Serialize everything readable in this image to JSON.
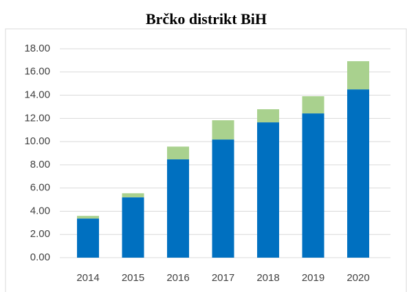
{
  "chart_data": {
    "type": "stacked_bar",
    "title": "Brčko distrikt BiH",
    "categories": [
      "2014",
      "2015",
      "2016",
      "2017",
      "2018",
      "2019",
      "2020"
    ],
    "series": [
      {
        "color": "#0070c0",
        "values": [
          3.37,
          5.2,
          8.47,
          10.18,
          11.66,
          12.43,
          14.5
        ]
      },
      {
        "color": "#a9d18e",
        "values": [
          0.23,
          0.35,
          1.1,
          1.66,
          1.13,
          1.48,
          2.43
        ]
      }
    ],
    "ylim": [
      0,
      18
    ],
    "yticks": [
      {
        "value": 0,
        "label": "0.00"
      },
      {
        "value": 2,
        "label": "2.00"
      },
      {
        "value": 4,
        "label": "4.00"
      },
      {
        "value": 6,
        "label": "6.00"
      },
      {
        "value": 8,
        "label": "8.00"
      },
      {
        "value": 10,
        "label": "10.00"
      },
      {
        "value": 12,
        "label": "12.00"
      },
      {
        "value": 14,
        "label": "14.00"
      },
      {
        "value": 16,
        "label": "16.00"
      },
      {
        "value": 18,
        "label": "18.00"
      }
    ],
    "grid": true
  }
}
